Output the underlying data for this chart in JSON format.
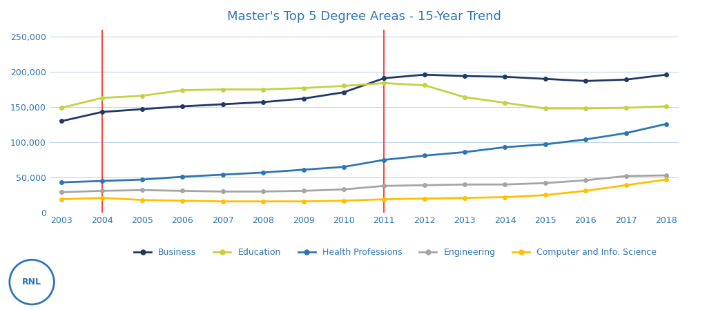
{
  "title": "Master's Top 5 Degree Areas - 15-Year Trend",
  "title_color": "#2E75B6",
  "years": [
    2003,
    2004,
    2005,
    2006,
    2007,
    2008,
    2009,
    2010,
    2011,
    2012,
    2013,
    2014,
    2015,
    2016,
    2017,
    2018
  ],
  "series": {
    "Business": {
      "color": "#1F3864",
      "values": [
        130000,
        143000,
        147000,
        151000,
        154000,
        157000,
        162000,
        171000,
        191000,
        196000,
        194000,
        193000,
        190000,
        187000,
        189000,
        196000
      ]
    },
    "Education": {
      "color": "#C5D13F",
      "values": [
        149000,
        163000,
        166000,
        174000,
        175000,
        175000,
        177000,
        180000,
        184000,
        181000,
        164000,
        156000,
        148000,
        148000,
        149000,
        151000
      ]
    },
    "Health Professions": {
      "color": "#2E75B6",
      "values": [
        43000,
        45000,
        47000,
        51000,
        54000,
        57000,
        61000,
        65000,
        75000,
        81000,
        86000,
        93000,
        97000,
        104000,
        113000,
        126000
      ]
    },
    "Engineering": {
      "color": "#A5A5A5",
      "values": [
        29000,
        31000,
        32000,
        31000,
        30000,
        30000,
        31000,
        33000,
        38000,
        39000,
        40000,
        40000,
        42000,
        46000,
        52000,
        53000
      ]
    },
    "Computer and Info. Science": {
      "color": "#FFC000",
      "values": [
        19000,
        21000,
        18000,
        17000,
        16000,
        16000,
        16000,
        17000,
        19000,
        20000,
        21000,
        22000,
        25000,
        31000,
        39000,
        47000
      ]
    }
  },
  "vlines": [
    2004,
    2011
  ],
  "vline_color": "#FF4444",
  "ylim": [
    0,
    260000
  ],
  "yticks": [
    0,
    50000,
    100000,
    150000,
    200000,
    250000
  ],
  "background_color": "#FFFFFF",
  "grid_color": "#BDD7EE",
  "axis_color": "#2E75B6",
  "legend_text_color": "#2E75B6",
  "fig_width": 10.24,
  "fig_height": 4.49
}
